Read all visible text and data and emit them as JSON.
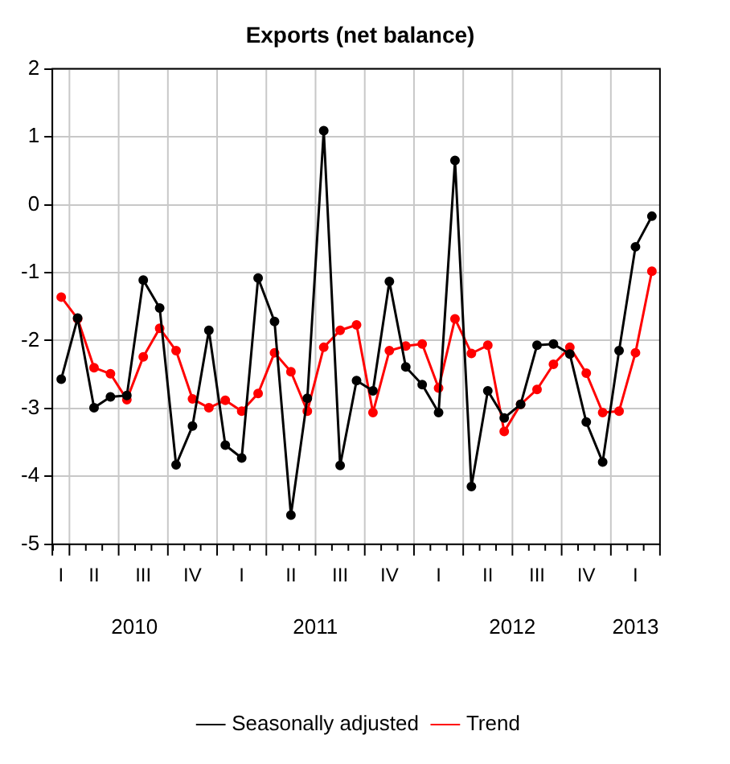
{
  "chart_data": {
    "type": "line",
    "title": "Exports (net balance)",
    "x": [
      "2010-03",
      "2010-04",
      "2010-05",
      "2010-06",
      "2010-07",
      "2010-08",
      "2010-09",
      "2010-10",
      "2010-11",
      "2010-12",
      "2011-01",
      "2011-02",
      "2011-03",
      "2011-04",
      "2011-05",
      "2011-06",
      "2011-07",
      "2011-08",
      "2011-09",
      "2011-10",
      "2011-11",
      "2011-12",
      "2012-01",
      "2012-02",
      "2012-03",
      "2012-04",
      "2012-05",
      "2012-06",
      "2012-07",
      "2012-08",
      "2012-09",
      "2012-10",
      "2012-11",
      "2012-12",
      "2013-01",
      "2013-02",
      "2013-03"
    ],
    "series": [
      {
        "name": "Seasonally adjusted",
        "color": "#000000",
        "values": [
          -2.57,
          -1.67,
          -2.99,
          -2.83,
          -2.81,
          -1.11,
          -1.52,
          -3.83,
          -3.26,
          -1.85,
          -3.54,
          -3.73,
          -1.08,
          -1.72,
          -4.57,
          -2.85,
          1.09,
          -3.84,
          -2.59,
          -2.74,
          -1.13,
          -2.39,
          -2.65,
          -3.06,
          0.65,
          -4.15,
          -2.74,
          -3.14,
          -2.94,
          -2.07,
          -2.05,
          -2.2,
          -3.2,
          -3.79,
          -2.15,
          -0.62,
          -0.17
        ]
      },
      {
        "name": "Trend",
        "color": "#ff0000",
        "values": [
          -1.36,
          -1.68,
          -2.4,
          -2.49,
          -2.87,
          -2.24,
          -1.82,
          -2.15,
          -2.86,
          -2.99,
          -2.88,
          -3.04,
          -2.78,
          -2.18,
          -2.46,
          -3.04,
          -2.1,
          -1.85,
          -1.77,
          -3.06,
          -2.15,
          -2.08,
          -2.05,
          -2.7,
          -1.68,
          -2.19,
          -2.07,
          -3.34,
          -2.94,
          -2.72,
          -2.35,
          -2.1,
          -2.48,
          -3.06,
          -3.04,
          -2.18,
          -0.98
        ]
      }
    ],
    "xlim": [
      "2010-02-15",
      "2013-03-16"
    ],
    "xticks": [
      {
        "value": "2010-07-15",
        "label": "2010"
      },
      {
        "value": "2011-06-16",
        "label": "2011"
      },
      {
        "value": "2012-06-16",
        "label": "2012"
      },
      {
        "value": "2013-02-01",
        "label": "2013"
      }
    ],
    "annotations": [
      "I",
      "II",
      "III",
      "IV",
      "I",
      "II",
      "III",
      "IV",
      "I",
      "II",
      "III",
      "IV",
      "I"
    ],
    "ylim": [
      -5,
      2
    ],
    "yticks": [
      -5,
      -4,
      -3,
      -2,
      -1,
      0,
      1,
      2
    ],
    "grid": true,
    "legend": "bottom",
    "marker": "circle",
    "line_style": "solid"
  }
}
